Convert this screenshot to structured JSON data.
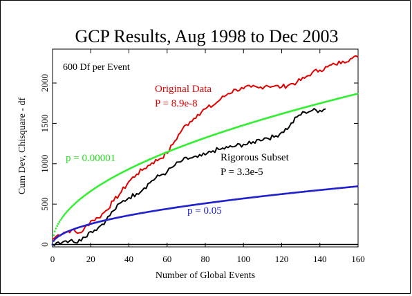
{
  "chart_data": {
    "type": "line",
    "title": "GCP Results, Aug 1998 to Dec 2003",
    "xlabel": "Number of Global Events",
    "ylabel": "Cum Dev, Chisquare - df",
    "xlim": [
      0,
      160
    ],
    "ylim": [
      -30,
      2420
    ],
    "x_ticks": [
      0,
      20,
      40,
      60,
      80,
      100,
      120,
      140,
      160
    ],
    "y_ticks": [
      0,
      500,
      1000,
      1500,
      2000
    ],
    "grid": false,
    "annotations": {
      "corner_note": "600 Df per Event",
      "original_label": "Original Data",
      "original_p": "P = 8.9e-8",
      "rigorous_label": "Rigorous Subset",
      "rigorous_p": "P = 3.3e-5",
      "p_green_label": "p = 0.00001",
      "p_blue_label": "p = 0.05"
    },
    "series": [
      {
        "key": "original",
        "color": "#e00000",
        "style": "jagged",
        "x": [
          0,
          3,
          6,
          10,
          13,
          16,
          20,
          24,
          28,
          32,
          36,
          40,
          44,
          48,
          52,
          56,
          60,
          64,
          68,
          72,
          76,
          80,
          84,
          88,
          92,
          96,
          100,
          104,
          108,
          112,
          116,
          120,
          124,
          128,
          132,
          136,
          140,
          144,
          148,
          152,
          156,
          160
        ],
        "values": [
          60,
          120,
          150,
          180,
          140,
          170,
          290,
          330,
          420,
          540,
          650,
          780,
          870,
          940,
          1010,
          1060,
          1130,
          1280,
          1430,
          1520,
          1610,
          1680,
          1720,
          1800,
          1870,
          1920,
          1930,
          1950,
          1940,
          1970,
          1960,
          1950,
          1980,
          2010,
          2060,
          2130,
          2160,
          2200,
          2230,
          2270,
          2300,
          2320
        ]
      },
      {
        "key": "rigorous",
        "color": "#000000",
        "style": "jagged",
        "x": [
          0,
          3,
          6,
          10,
          13,
          16,
          20,
          24,
          28,
          32,
          36,
          40,
          44,
          48,
          52,
          56,
          60,
          64,
          68,
          72,
          76,
          80,
          84,
          88,
          92,
          96,
          100,
          104,
          108,
          112,
          116,
          120,
          124,
          128,
          132,
          136,
          140,
          143
        ],
        "values": [
          0,
          30,
          40,
          60,
          20,
          90,
          160,
          210,
          300,
          420,
          520,
          580,
          630,
          700,
          790,
          850,
          900,
          980,
          1040,
          1070,
          1080,
          1110,
          1160,
          1180,
          1200,
          1220,
          1240,
          1250,
          1300,
          1320,
          1330,
          1390,
          1460,
          1580,
          1640,
          1660,
          1660,
          1680
        ]
      },
      {
        "key": "p_00001",
        "color": "#33ee33",
        "style": "dotted",
        "formula": "4.265 * sqrt(1200 * n)",
        "x": [
          0,
          160
        ]
      },
      {
        "key": "p_05",
        "color": "#2222cc",
        "style": "dotted",
        "formula": "1.645 * sqrt(1200 * n)",
        "x": [
          0,
          160
        ]
      },
      {
        "key": "zero",
        "color": "#000000",
        "style": "solid",
        "x": [
          0,
          160
        ],
        "values": [
          0,
          0
        ]
      }
    ]
  }
}
